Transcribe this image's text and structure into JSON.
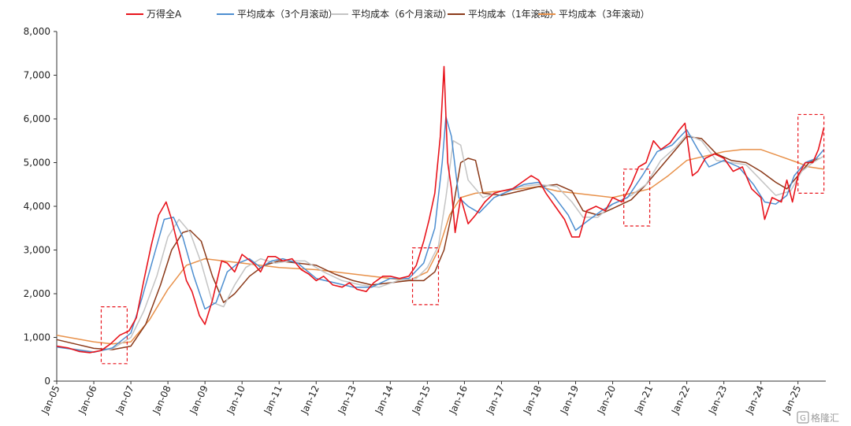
{
  "chart_data": {
    "type": "line",
    "title": "",
    "xlabel": "",
    "ylabel": "",
    "ylim": [
      0,
      8000
    ],
    "yticks": [
      0,
      1000,
      2000,
      3000,
      4000,
      5000,
      6000,
      7000,
      8000
    ],
    "ytick_labels": [
      "0",
      "1,000",
      "2,000",
      "3,000",
      "4,000",
      "5,000",
      "6,000",
      "7,000",
      "8,000"
    ],
    "xlim": [
      2005.0,
      2025.75
    ],
    "xticks": [
      "Jan-05",
      "Jan-06",
      "Jan-07",
      "Jan-08",
      "Jan-09",
      "Jan-10",
      "Jan-11",
      "Jan-12",
      "Jan-13",
      "Jan-14",
      "Jan-15",
      "Jan-16",
      "Jan-17",
      "Jan-18",
      "Jan-19",
      "Jan-20",
      "Jan-21",
      "Jan-22",
      "Jan-23",
      "Jan-24",
      "Jan-25"
    ],
    "grid": false,
    "legend_position": "top",
    "series": [
      {
        "name": "万得全A",
        "color": "#e8141c",
        "x": [
          2005.0,
          2005.3,
          2005.6,
          2005.9,
          2006.2,
          2006.45,
          2006.7,
          2006.95,
          2007.15,
          2007.35,
          2007.55,
          2007.75,
          2007.95,
          2008.1,
          2008.3,
          2008.5,
          2008.65,
          2008.85,
          2009.0,
          2009.2,
          2009.45,
          2009.6,
          2009.8,
          2010.0,
          2010.3,
          2010.5,
          2010.7,
          2010.9,
          2011.1,
          2011.35,
          2011.6,
          2011.8,
          2012.0,
          2012.2,
          2012.45,
          2012.7,
          2012.9,
          2013.1,
          2013.35,
          2013.55,
          2013.8,
          2014.0,
          2014.25,
          2014.5,
          2014.7,
          2014.9,
          2015.05,
          2015.2,
          2015.35,
          2015.45,
          2015.55,
          2015.65,
          2015.75,
          2015.9,
          2016.1,
          2016.3,
          2016.55,
          2016.8,
          2017.0,
          2017.3,
          2017.55,
          2017.8,
          2018.0,
          2018.2,
          2018.45,
          2018.7,
          2018.9,
          2019.1,
          2019.3,
          2019.55,
          2019.8,
          2020.0,
          2020.25,
          2020.5,
          2020.7,
          2020.9,
          2021.1,
          2021.3,
          2021.55,
          2021.8,
          2021.95,
          2022.15,
          2022.3,
          2022.5,
          2022.75,
          2023.0,
          2023.25,
          2023.5,
          2023.75,
          2024.0,
          2024.1,
          2024.3,
          2024.55,
          2024.7,
          2024.85,
          2025.0,
          2025.2,
          2025.4,
          2025.55,
          2025.7
        ],
        "y": [
          800,
          760,
          680,
          650,
          700,
          850,
          1050,
          1150,
          1450,
          2300,
          3100,
          3800,
          4100,
          3700,
          3000,
          2300,
          2050,
          1500,
          1300,
          1850,
          2750,
          2700,
          2500,
          2900,
          2700,
          2500,
          2850,
          2850,
          2750,
          2800,
          2550,
          2450,
          2300,
          2400,
          2200,
          2150,
          2250,
          2100,
          2050,
          2250,
          2400,
          2400,
          2350,
          2400,
          2650,
          3200,
          3700,
          4300,
          5600,
          7200,
          5000,
          4400,
          3400,
          4200,
          3600,
          3800,
          4100,
          4300,
          4350,
          4400,
          4550,
          4700,
          4600,
          4300,
          4000,
          3700,
          3300,
          3300,
          3900,
          4000,
          3900,
          4200,
          4100,
          4500,
          4900,
          5000,
          5500,
          5300,
          5450,
          5750,
          5900,
          4700,
          4800,
          5100,
          5200,
          5100,
          4800,
          4900,
          4400,
          4200,
          3700,
          4200,
          4100,
          4600,
          4100,
          4700,
          5000,
          5000,
          5300,
          5800
        ]
      },
      {
        "name": "平均成本（3个月滚动）",
        "color": "#4d8ed0",
        "x": [
          2005.0,
          2005.5,
          2006.0,
          2006.5,
          2007.0,
          2007.3,
          2007.6,
          2007.9,
          2008.15,
          2008.4,
          2008.7,
          2009.0,
          2009.3,
          2009.6,
          2009.9,
          2010.2,
          2010.5,
          2010.8,
          2011.1,
          2011.5,
          2012.0,
          2012.5,
          2013.0,
          2013.5,
          2014.0,
          2014.5,
          2014.9,
          2015.2,
          2015.4,
          2015.5,
          2015.65,
          2015.85,
          2016.1,
          2016.4,
          2016.8,
          2017.2,
          2017.6,
          2018.0,
          2018.4,
          2018.8,
          2019.0,
          2019.3,
          2019.7,
          2020.0,
          2020.4,
          2020.8,
          2021.2,
          2021.6,
          2022.0,
          2022.3,
          2022.6,
          2023.0,
          2023.4,
          2023.8,
          2024.1,
          2024.4,
          2024.7,
          2024.9,
          2025.2,
          2025.5,
          2025.7
        ],
        "y": [
          780,
          720,
          660,
          760,
          1100,
          1900,
          2800,
          3700,
          3750,
          3300,
          2400,
          1650,
          1800,
          2500,
          2700,
          2800,
          2600,
          2750,
          2800,
          2700,
          2350,
          2250,
          2150,
          2150,
          2350,
          2350,
          2700,
          3500,
          5000,
          6050,
          5600,
          4200,
          4000,
          3850,
          4200,
          4350,
          4500,
          4550,
          4250,
          3800,
          3450,
          3650,
          3900,
          4050,
          4200,
          4700,
          5250,
          5400,
          5750,
          5300,
          4900,
          5050,
          4900,
          4500,
          4100,
          4050,
          4250,
          4700,
          5000,
          5100,
          5300
        ]
      },
      {
        "name": "平均成本（6个月滚动）",
        "color": "#c4c4c4",
        "x": [
          2005.0,
          2005.5,
          2006.0,
          2006.5,
          2007.0,
          2007.35,
          2007.7,
          2008.0,
          2008.3,
          2008.6,
          2008.9,
          2009.2,
          2009.5,
          2009.8,
          2010.1,
          2010.5,
          2010.9,
          2011.3,
          2011.7,
          2012.2,
          2012.7,
          2013.2,
          2013.7,
          2014.2,
          2014.7,
          2015.0,
          2015.3,
          2015.5,
          2015.7,
          2015.9,
          2016.1,
          2016.5,
          2017.0,
          2017.5,
          2018.0,
          2018.5,
          2018.9,
          2019.2,
          2019.6,
          2020.0,
          2020.5,
          2020.9,
          2021.3,
          2021.7,
          2022.0,
          2022.4,
          2022.8,
          2023.2,
          2023.6,
          2024.0,
          2024.4,
          2024.8,
          2025.1,
          2025.4,
          2025.7
        ],
        "y": [
          790,
          730,
          670,
          740,
          1000,
          1600,
          2400,
          3300,
          3700,
          3400,
          2700,
          1800,
          1700,
          2200,
          2600,
          2800,
          2700,
          2750,
          2750,
          2500,
          2300,
          2200,
          2150,
          2300,
          2350,
          2600,
          3100,
          4200,
          5500,
          5400,
          4600,
          4200,
          4350,
          4450,
          4500,
          4450,
          4100,
          3750,
          3750,
          4050,
          4250,
          4500,
          5050,
          5350,
          5650,
          5500,
          5050,
          5000,
          4950,
          4600,
          4250,
          4350,
          4800,
          5000,
          5150
        ]
      },
      {
        "name": "平均成本（1年滚动）",
        "color": "#8b3a1a",
        "x": [
          2005.0,
          2005.5,
          2006.0,
          2006.5,
          2007.0,
          2007.4,
          2007.8,
          2008.1,
          2008.4,
          2008.6,
          2008.9,
          2009.2,
          2009.5,
          2009.8,
          2010.2,
          2010.6,
          2011.0,
          2011.5,
          2012.0,
          2012.5,
          2013.0,
          2013.5,
          2014.0,
          2014.5,
          2014.9,
          2015.2,
          2015.45,
          2015.7,
          2015.9,
          2016.1,
          2016.3,
          2016.5,
          2017.0,
          2017.5,
          2018.0,
          2018.5,
          2018.9,
          2019.2,
          2019.6,
          2020.0,
          2020.5,
          2020.9,
          2021.3,
          2021.7,
          2022.0,
          2022.4,
          2022.8,
          2023.2,
          2023.6,
          2024.0,
          2024.4,
          2024.7,
          2025.0,
          2025.3,
          2025.6
        ],
        "y": [
          950,
          850,
          750,
          720,
          800,
          1300,
          2200,
          3000,
          3400,
          3450,
          3200,
          2400,
          1800,
          2000,
          2400,
          2650,
          2750,
          2700,
          2650,
          2450,
          2300,
          2200,
          2250,
          2300,
          2300,
          2500,
          3000,
          4000,
          5000,
          5100,
          5050,
          4300,
          4250,
          4350,
          4450,
          4500,
          4350,
          3900,
          3800,
          3950,
          4150,
          4500,
          4900,
          5300,
          5600,
          5550,
          5200,
          5050,
          5000,
          4800,
          4550,
          4400,
          4700,
          5000,
          5100
        ]
      },
      {
        "name": "平均成本（3年滚动）",
        "color": "#e8914a",
        "x": [
          2005.0,
          2006.0,
          2006.5,
          2007.0,
          2007.5,
          2008.0,
          2008.5,
          2009.0,
          2009.5,
          2010.0,
          2010.5,
          2011.0,
          2012.0,
          2013.0,
          2014.0,
          2014.5,
          2015.0,
          2015.3,
          2015.6,
          2015.9,
          2016.3,
          2017.0,
          2017.5,
          2018.0,
          2018.5,
          2019.0,
          2019.5,
          2020.0,
          2020.5,
          2021.0,
          2021.5,
          2022.0,
          2022.5,
          2023.0,
          2023.5,
          2024.0,
          2024.5,
          2025.0,
          2025.3,
          2025.7
        ],
        "y": [
          1050,
          900,
          850,
          900,
          1400,
          2100,
          2650,
          2800,
          2750,
          2700,
          2650,
          2600,
          2550,
          2450,
          2350,
          2300,
          2500,
          3000,
          3800,
          4200,
          4300,
          4350,
          4400,
          4450,
          4350,
          4300,
          4250,
          4200,
          4300,
          4400,
          4700,
          5050,
          5150,
          5250,
          5300,
          5300,
          5150,
          5000,
          4900,
          4850
        ]
      }
    ],
    "annotations": [
      {
        "type": "dashed-box",
        "color": "#e8141c",
        "x0": 2006.2,
        "x1": 2006.9,
        "y0": 400,
        "y1": 1700
      },
      {
        "type": "dashed-box",
        "color": "#e8141c",
        "x0": 2014.6,
        "x1": 2015.3,
        "y0": 1750,
        "y1": 3050
      },
      {
        "type": "dashed-box",
        "color": "#e8141c",
        "x0": 2020.3,
        "x1": 2021.0,
        "y0": 3550,
        "y1": 4850
      },
      {
        "type": "dashed-box",
        "color": "#e8141c",
        "x0": 2025.0,
        "x1": 2025.7,
        "y0": 4300,
        "y1": 6100
      }
    ]
  },
  "watermark": {
    "text": "格隆汇",
    "color": "#9a9a9a"
  }
}
